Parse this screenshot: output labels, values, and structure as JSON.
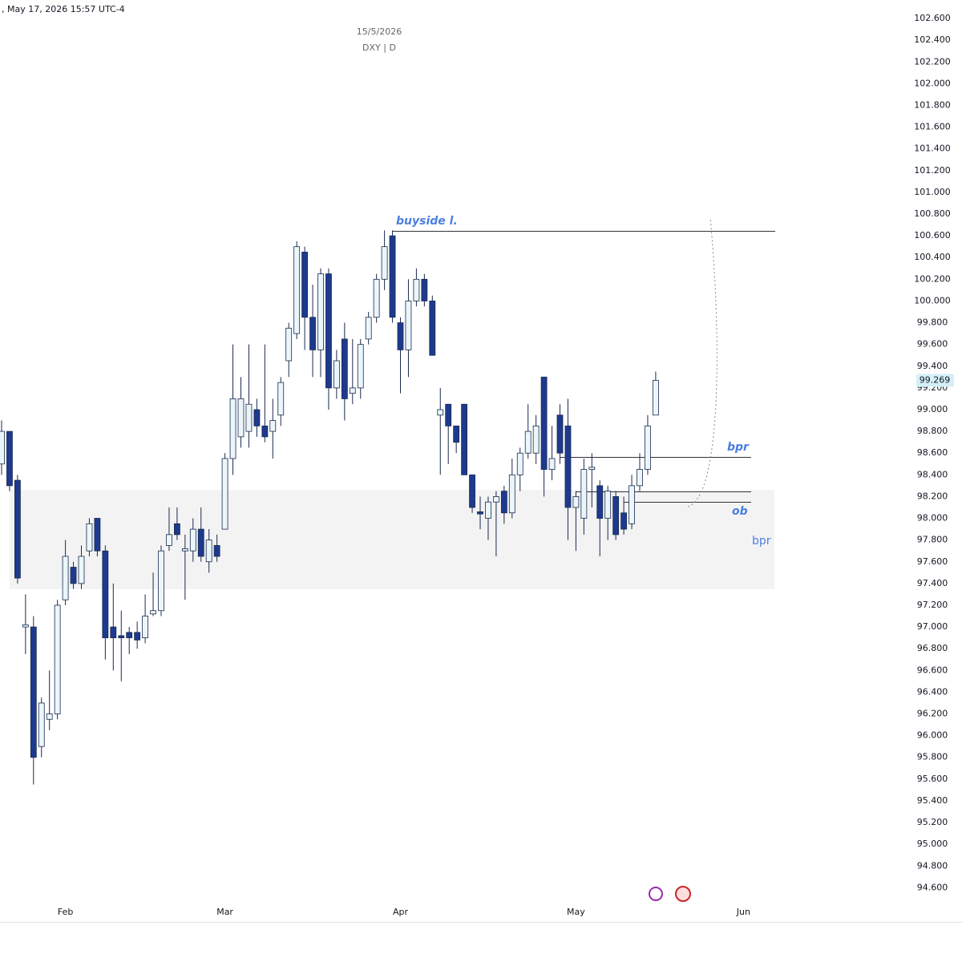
{
  "header": ", May 17, 2026 15:57 UTC-4",
  "chart_data": {
    "type": "candlestick",
    "title": "15/5/2026",
    "subtitle": "DXY | D",
    "categories": [
      null,
      null,
      null,
      null,
      null,
      null,
      null,
      null,
      "Feb",
      null,
      null,
      null,
      null,
      null,
      null,
      null,
      null,
      null,
      null,
      null,
      null,
      null,
      null,
      null,
      null,
      null,
      null,
      null,
      "Mar",
      null,
      null,
      null,
      null,
      null,
      null,
      null,
      null,
      null,
      null,
      null,
      null,
      null,
      null,
      null,
      null,
      null,
      null,
      null,
      null,
      null,
      "Apr",
      null,
      null,
      null,
      null,
      null,
      null,
      null,
      null,
      null,
      null,
      null,
      null,
      null,
      null,
      null,
      null,
      null,
      null,
      null,
      null,
      null,
      "May",
      null,
      null,
      null,
      null,
      null,
      null,
      null,
      null,
      null,
      null,
      null,
      null,
      null,
      null,
      null,
      null,
      null,
      null,
      null,
      null,
      "Jun"
    ],
    "open": [
      98.5,
      98.8,
      98.35,
      97.0,
      97.0,
      95.9,
      96.15,
      96.2,
      97.25,
      97.55,
      97.4,
      97.7,
      98.0,
      97.7,
      97.0,
      96.92,
      96.95,
      96.95,
      96.9,
      97.12,
      97.15,
      97.75,
      97.95,
      97.7,
      97.7,
      97.9,
      97.6,
      97.75,
      97.9,
      98.55,
      98.75,
      98.8,
      99.0,
      98.85,
      98.8,
      98.95,
      99.45,
      99.7,
      100.45,
      99.85,
      99.55,
      100.25,
      99.2,
      99.65,
      99.15,
      99.2,
      99.65,
      99.85,
      100.2,
      100.6,
      99.8,
      99.55,
      100.0,
      100.2,
      100.0,
      98.95,
      99.05,
      98.85,
      99.05,
      98.4,
      98.06,
      98.0,
      98.15,
      98.25,
      98.05,
      98.4,
      98.6,
      98.6,
      99.3,
      98.45,
      98.95,
      98.85,
      98.1,
      98.0,
      98.45,
      98.3,
      98.0,
      98.2,
      98.05,
      97.95,
      98.3,
      98.45,
      98.95,
      null,
      null,
      null,
      null,
      null,
      null,
      null,
      null,
      null,
      null,
      null
    ],
    "high": [
      98.9,
      98.8,
      98.4,
      97.3,
      97.1,
      96.35,
      96.6,
      97.25,
      97.8,
      97.6,
      97.75,
      98.0,
      98.0,
      97.75,
      97.4,
      97.15,
      97.0,
      97.05,
      97.3,
      97.5,
      97.75,
      98.1,
      98.1,
      97.85,
      98.0,
      98.1,
      97.9,
      97.85,
      98.6,
      99.6,
      99.3,
      99.6,
      99.1,
      99.6,
      99.1,
      99.3,
      99.8,
      100.55,
      100.5,
      100.15,
      100.3,
      100.3,
      99.55,
      99.8,
      99.65,
      99.65,
      99.9,
      100.25,
      100.65,
      100.65,
      99.85,
      100.2,
      100.3,
      100.25,
      100.05,
      99.2,
      99.05,
      98.85,
      99.05,
      98.4,
      98.2,
      98.2,
      98.25,
      98.3,
      98.55,
      98.65,
      99.05,
      98.95,
      99.3,
      98.85,
      99.05,
      99.1,
      98.25,
      98.55,
      98.6,
      98.35,
      98.3,
      98.25,
      98.2,
      98.4,
      98.6,
      98.95,
      99.35,
      null,
      null,
      null,
      null,
      null,
      null,
      null,
      null,
      null,
      null,
      null
    ],
    "low": [
      98.4,
      98.25,
      97.4,
      96.75,
      95.55,
      95.8,
      96.05,
      96.15,
      97.2,
      97.35,
      97.35,
      97.65,
      97.65,
      96.7,
      96.6,
      96.5,
      96.75,
      96.8,
      96.85,
      97.1,
      97.1,
      97.7,
      97.8,
      97.25,
      97.6,
      97.6,
      97.5,
      97.6,
      97.9,
      98.4,
      98.65,
      98.65,
      98.75,
      98.7,
      98.55,
      98.85,
      99.3,
      99.65,
      99.55,
      99.3,
      99.3,
      99.0,
      99.1,
      98.9,
      99.05,
      99.1,
      99.6,
      99.8,
      100.1,
      99.8,
      99.15,
      99.3,
      99.95,
      99.95,
      99.5,
      98.4,
      98.5,
      98.6,
      98.4,
      98.05,
      97.9,
      97.8,
      97.65,
      97.95,
      98.0,
      98.25,
      98.55,
      98.5,
      98.2,
      98.35,
      98.5,
      97.8,
      97.7,
      97.85,
      98.1,
      97.65,
      97.8,
      97.8,
      97.85,
      97.9,
      98.25,
      98.4,
      98.95,
      null,
      null,
      null,
      null,
      null,
      null,
      null,
      null,
      null,
      null,
      null
    ],
    "close": [
      98.8,
      98.3,
      97.45,
      97.02,
      95.8,
      96.3,
      96.2,
      97.2,
      97.65,
      97.4,
      97.65,
      97.95,
      97.7,
      96.9,
      96.9,
      96.9,
      96.9,
      96.88,
      97.1,
      97.15,
      97.7,
      97.85,
      97.85,
      97.72,
      97.9,
      97.65,
      97.8,
      97.65,
      98.55,
      99.1,
      99.1,
      99.05,
      98.85,
      98.75,
      98.9,
      99.25,
      99.75,
      100.5,
      99.85,
      99.55,
      100.25,
      99.2,
      99.45,
      99.1,
      99.2,
      99.6,
      99.85,
      100.2,
      100.5,
      99.85,
      99.55,
      100.0,
      100.2,
      100.0,
      99.5,
      99.0,
      98.85,
      98.7,
      98.4,
      98.1,
      98.04,
      98.15,
      98.2,
      98.05,
      98.4,
      98.6,
      98.8,
      98.85,
      98.45,
      98.55,
      98.6,
      98.1,
      98.2,
      98.45,
      98.47,
      98.0,
      98.25,
      97.85,
      97.9,
      98.3,
      98.45,
      98.85,
      99.269,
      null,
      null,
      null,
      null,
      null,
      null,
      null,
      null,
      null,
      null,
      null
    ],
    "up_color": "#eaf6fa",
    "down_color": "#1d3a8f",
    "ylim": [
      94.47,
      102.77
    ],
    "yticks": [
      {
        "value": 94.6,
        "label": "94.600"
      },
      {
        "value": 94.8,
        "label": "94.800"
      },
      {
        "value": 95.0,
        "label": "95.000"
      },
      {
        "value": 95.2,
        "label": "95.200"
      },
      {
        "value": 95.4,
        "label": "95.400"
      },
      {
        "value": 95.6,
        "label": "95.600"
      },
      {
        "value": 95.8,
        "label": "95.800"
      },
      {
        "value": 96.0,
        "label": "96.000"
      },
      {
        "value": 96.2,
        "label": "96.200"
      },
      {
        "value": 96.4,
        "label": "96.400"
      },
      {
        "value": 96.6,
        "label": "96.600"
      },
      {
        "value": 96.8,
        "label": "96.800"
      },
      {
        "value": 97.0,
        "label": "97.000"
      },
      {
        "value": 97.2,
        "label": "97.200"
      },
      {
        "value": 97.4,
        "label": "97.400"
      },
      {
        "value": 97.6,
        "label": "97.600"
      },
      {
        "value": 97.8,
        "label": "97.800"
      },
      {
        "value": 98.0,
        "label": "98.000"
      },
      {
        "value": 98.2,
        "label": "98.200"
      },
      {
        "value": 98.4,
        "label": "98.400"
      },
      {
        "value": 98.6,
        "label": "98.600"
      },
      {
        "value": 98.8,
        "label": "98.800"
      },
      {
        "value": 99.0,
        "label": "99.000"
      },
      {
        "value": 99.2,
        "label": "99.200"
      },
      {
        "value": 99.4,
        "label": "99.400"
      },
      {
        "value": 99.6,
        "label": "99.600"
      },
      {
        "value": 99.8,
        "label": "99.800"
      },
      {
        "value": 100.0,
        "label": "100.000"
      },
      {
        "value": 100.2,
        "label": "100.200"
      },
      {
        "value": 100.4,
        "label": "100.400"
      },
      {
        "value": 100.6,
        "label": "100.600"
      },
      {
        "value": 100.8,
        "label": "100.800"
      },
      {
        "value": 101.0,
        "label": "101.000"
      },
      {
        "value": 101.2,
        "label": "101.200"
      },
      {
        "value": 101.4,
        "label": "101.400"
      },
      {
        "value": 101.6,
        "label": "101.600"
      },
      {
        "value": 101.8,
        "label": "101.800"
      },
      {
        "value": 102.0,
        "label": "102.000"
      },
      {
        "value": 102.2,
        "label": "102.200"
      },
      {
        "value": 102.4,
        "label": "102.400"
      },
      {
        "value": 102.6,
        "label": "102.600"
      }
    ],
    "annotations": [
      "buyside l.",
      "bpr",
      "ob",
      "bpr"
    ]
  }
}
